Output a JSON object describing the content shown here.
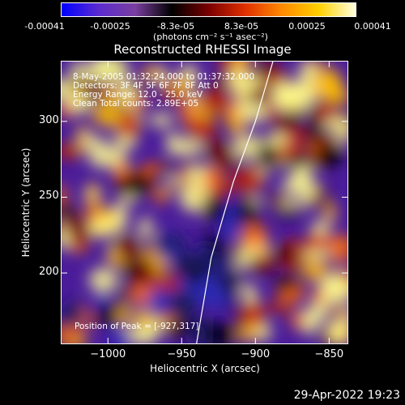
{
  "colorbar": {
    "tick_labels": [
      "-0.00041",
      "-0.00025",
      "-8.3e-05",
      "8.3e-05",
      "0.00025",
      "0.00041"
    ],
    "units": "(photons cm⁻² s⁻¹ asec⁻²)",
    "colors": [
      "#0000ff",
      "#5a2bd0",
      "#7a3fa0",
      "#000000",
      "#7a0000",
      "#e03000",
      "#ff8a00",
      "#ffd000",
      "#ffffe0"
    ]
  },
  "title": "Reconstructed RHESSI Image",
  "info": {
    "line1": "8-May-2005 01:32:24.000 to 01:37:32.000",
    "line2": "Detectors: 3F 4F 5F 6F 7F 8F Att 0",
    "line3": "Energy Range: 12.0 - 25.0 keV",
    "line4": "Clean   Total counts: 2.89E+05",
    "peak": "Position of Peak = [-927,317]"
  },
  "date": "29-Apr-2022 19:23",
  "chart_data": {
    "type": "heatmap",
    "title": "Reconstructed RHESSI Image",
    "xlabel": "Heliocentric X (arcsec)",
    "ylabel": "Heliocentric Y (arcsec)",
    "xlim": [
      -1032,
      -837
    ],
    "ylim": [
      153,
      340
    ],
    "xticks": [
      -1000,
      -950,
      -900,
      -850
    ],
    "yticks": [
      200,
      250,
      300
    ],
    "zlim": [
      -0.00041,
      0.00041
    ],
    "limb_curve": [
      [
        -940,
        153
      ],
      [
        -930,
        210
      ],
      [
        -915,
        260
      ],
      [
        -900,
        300
      ],
      [
        -888,
        340
      ]
    ],
    "peak": [
      -927,
      317
    ]
  }
}
